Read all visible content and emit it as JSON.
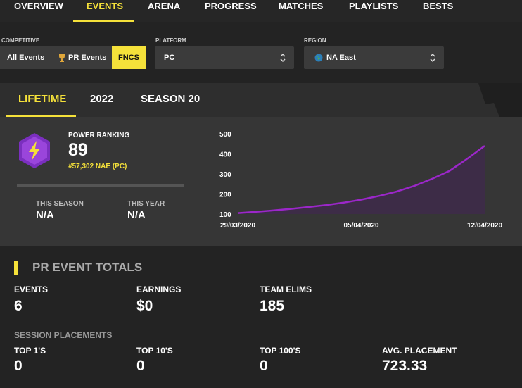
{
  "nav": {
    "tabs": [
      "OVERVIEW",
      "EVENTS",
      "ARENA",
      "PROGRESS",
      "MATCHES",
      "PLAYLISTS",
      "BESTS"
    ]
  },
  "filters": {
    "competitive": {
      "label": "COMPETITIVE",
      "options": [
        "All Events",
        "PR Events",
        "FNCS"
      ]
    },
    "platform": {
      "label": "PLATFORM",
      "value": "PC"
    },
    "region": {
      "label": "REGION",
      "value": "NA East"
    }
  },
  "period_tabs": [
    "LIFETIME",
    "2022",
    "SEASON 20"
  ],
  "power_ranking": {
    "label": "POWER RANKING",
    "value": 89,
    "rank": "#57,302 NAE (PC)",
    "this_season": {
      "label": "THIS SEASON",
      "value": "N/A"
    },
    "this_year": {
      "label": "THIS YEAR",
      "value": "N/A"
    }
  },
  "chart_data": {
    "type": "line",
    "categories": [
      "29/03/2020",
      null,
      null,
      null,
      null,
      null,
      null,
      "05/04/2020",
      null,
      null,
      null,
      null,
      null,
      null,
      "12/04/2020"
    ],
    "values": [
      105,
      111,
      118,
      126,
      135,
      145,
      157,
      172,
      190,
      212,
      240,
      275,
      315,
      375,
      440
    ],
    "color": "#9b27c9",
    "fill": "#3d2c47",
    "ylim": [
      100,
      500
    ],
    "yticks": [
      100,
      200,
      300,
      400,
      500
    ]
  },
  "totals": {
    "title": "PR EVENT TOTALS",
    "stats": [
      {
        "label": "EVENTS",
        "value": 6
      },
      {
        "label": "EARNINGS",
        "value": "$0"
      },
      {
        "label": "TEAM ELIMS",
        "value": 185
      }
    ],
    "session_title": "SESSION PLACEMENTS",
    "placements": [
      {
        "label": "TOP 1'S",
        "value": 0
      },
      {
        "label": "TOP 10'S",
        "value": 0
      },
      {
        "label": "TOP 100'S",
        "value": 0
      },
      {
        "label": "AVG. PLACEMENT",
        "value": 723.33
      }
    ]
  }
}
